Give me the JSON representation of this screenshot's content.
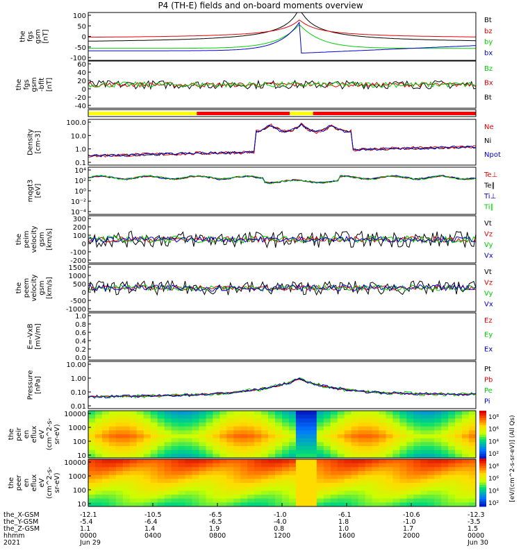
{
  "title": "P4 (TH-E) fields and on-board moments overview",
  "colors": {
    "black": "#000000",
    "red": "#e00000",
    "green": "#00cc00",
    "blue": "#0000cc",
    "yellow": "#ffff00",
    "bar_red": "#ff0000"
  },
  "chart_data": [
    {
      "type": "line",
      "ylabel": [
        "the",
        "fgs",
        "gsm",
        "[nT]"
      ],
      "yticks": [
        "100",
        "50",
        "0",
        "-50",
        "-100"
      ],
      "ylim": [
        -100,
        100
      ],
      "legend": [
        {
          "label": "Bt",
          "color": "#000000"
        },
        {
          "label": "bz",
          "color": "#e00000"
        },
        {
          "label": "by",
          "color": "#00cc00"
        },
        {
          "label": "bx",
          "color": "#0000cc"
        }
      ]
    },
    {
      "type": "line",
      "ylabel": [
        "the",
        "fgs",
        "gsm",
        "-bfit",
        "[nT]"
      ],
      "yticks": [
        "60",
        "40",
        "20",
        "0",
        "-20",
        "-40"
      ],
      "ylim": [
        -50,
        70
      ],
      "legend": [
        {
          "label": "Bz",
          "color": "#00cc00"
        },
        {
          "label": "Bx",
          "color": "#e00000"
        },
        {
          "label": "Bt",
          "color": "#000000"
        }
      ]
    },
    {
      "type": "bar-strip",
      "segments": [
        {
          "from": 0.0,
          "to": 0.28,
          "color": "#ffff00"
        },
        {
          "from": 0.28,
          "to": 0.52,
          "color": "#ff0000"
        },
        {
          "from": 0.52,
          "to": 0.58,
          "color": "#ffff00"
        },
        {
          "from": 0.58,
          "to": 1.0,
          "color": "#ff0000"
        }
      ]
    },
    {
      "type": "line",
      "ylabel": [
        "Density",
        "[cm-3]"
      ],
      "yticks": [
        "100.0",
        "10.0",
        "1.0",
        "0.1"
      ],
      "log": true,
      "legend": [
        {
          "label": "Ne",
          "color": "#e00000"
        },
        {
          "label": "Ni",
          "color": "#000000"
        },
        {
          "label": "Npot",
          "color": "#0000cc"
        }
      ]
    },
    {
      "type": "line",
      "ylabel": [
        "mqgt3",
        "[eV]"
      ],
      "yticks": [
        "10⁴",
        "10²",
        "10⁰",
        "10⁻²",
        "10⁻⁴"
      ],
      "log": true,
      "legend": [
        {
          "label": "Te⊥",
          "color": "#e00000"
        },
        {
          "label": "Te∥",
          "color": "#000000"
        },
        {
          "label": "Ti⊥",
          "color": "#0000cc"
        },
        {
          "label": "Ti∥",
          "color": "#00cc00"
        }
      ]
    },
    {
      "type": "line",
      "ylabel": [
        "the",
        "peim",
        "velocity",
        "gsm",
        "[km/s]"
      ],
      "yticks": [
        "300",
        "200",
        "100",
        "0",
        "-100",
        "-200"
      ],
      "ylim": [
        -200,
        300
      ],
      "legend": [
        {
          "label": "Vt",
          "color": "#000000"
        },
        {
          "label": "Vz",
          "color": "#e00000"
        },
        {
          "label": "Vy",
          "color": "#00cc00"
        },
        {
          "label": "Vx",
          "color": "#0000cc"
        }
      ]
    },
    {
      "type": "line",
      "ylabel": [
        "the",
        "peem",
        "velocity",
        "gsm",
        "[km/s]"
      ],
      "yticks": [
        "1500",
        "1000",
        "500",
        "0",
        "-500",
        "-1000"
      ],
      "ylim": [
        -1250,
        1750
      ],
      "legend": [
        {
          "label": "Vt",
          "color": "#000000"
        },
        {
          "label": "Vz",
          "color": "#e00000"
        },
        {
          "label": "Vy",
          "color": "#00cc00"
        },
        {
          "label": "Vx",
          "color": "#0000cc"
        }
      ]
    },
    {
      "type": "line",
      "ylabel": [
        "E=-VxB",
        "[mV/m]"
      ],
      "yticks": [
        "1.0",
        "0.8",
        "0.6",
        "0.4",
        "0.2",
        "0.0"
      ],
      "ylim": [
        0,
        1
      ],
      "legend": [
        {
          "label": "Ez",
          "color": "#e00000"
        },
        {
          "label": "Ey",
          "color": "#00cc00"
        },
        {
          "label": "Ex",
          "color": "#0000cc"
        }
      ]
    },
    {
      "type": "line",
      "ylabel": [
        "Pressure",
        "[nPa]"
      ],
      "yticks": [
        "10.00",
        "1.00",
        "0.10",
        "0.01"
      ],
      "log": true,
      "legend": [
        {
          "label": "Pt",
          "color": "#000000"
        },
        {
          "label": "Pb",
          "color": "#e00000"
        },
        {
          "label": "Pe",
          "color": "#00cc00"
        },
        {
          "label": "Pi",
          "color": "#0000cc"
        }
      ]
    },
    {
      "type": "heatmap",
      "ylabel": [
        "the",
        "peir",
        "en",
        "eflux",
        "eV",
        "(cm^2-s-",
        "sr-eV)"
      ],
      "yticks": [
        "10000",
        "1000",
        "100",
        "10"
      ],
      "log": true
    },
    {
      "type": "heatmap",
      "ylabel": [
        "the",
        "peer",
        "en",
        "eflux",
        "eV",
        "(cm^2-s-",
        "sr-eV)"
      ],
      "yticks": [
        "10000",
        "1000",
        "100",
        "10"
      ],
      "log": true
    }
  ],
  "colorbar": {
    "label": "[eV/(cm^2-s-sr-eV)] (All Qs)",
    "ticks": [
      "10⁸",
      "10⁶",
      "10⁴",
      "10²",
      "10⁸",
      "10⁶",
      "10⁴",
      "10²"
    ]
  },
  "x_axis": {
    "row_labels": [
      "the_X-GSM",
      "the_Y-GSM",
      "the_Z-GSM",
      "hhmm",
      "2021"
    ],
    "columns": [
      {
        "x": "-12.1",
        "y": "-5.4",
        "z": "1.1",
        "t": "0000",
        "d": "Jun 29"
      },
      {
        "x": "-10.5",
        "y": "-6.4",
        "z": "1.4",
        "t": "0400",
        "d": ""
      },
      {
        "x": "-6.5",
        "y": "-6.5",
        "z": "1.9",
        "t": "0800",
        "d": ""
      },
      {
        "x": "-1.0",
        "y": "-4.0",
        "z": "0.8",
        "t": "1200",
        "d": ""
      },
      {
        "x": "-6.1",
        "y": "1.8",
        "z": "1.0",
        "t": "1600",
        "d": ""
      },
      {
        "x": "-10.6",
        "y": "-1.0",
        "z": "1.7",
        "t": "2000",
        "d": ""
      },
      {
        "x": "-12.3",
        "y": "-3.5",
        "z": "1.5",
        "t": "0000",
        "d": "Jun 30"
      }
    ]
  }
}
